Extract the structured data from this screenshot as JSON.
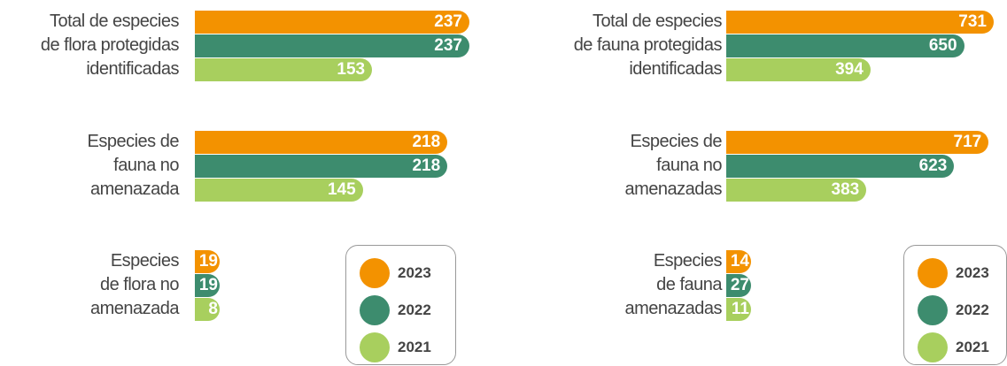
{
  "chart_data": [
    {
      "type": "bar",
      "categories": [
        "Total de especies\nde flora  protegidas\nidentificadas",
        "Especies de\nfauna no\namenazada",
        "Especies\nde flora no\namenazada"
      ],
      "series": [
        {
          "name": "2023",
          "color": "#f39200",
          "values": [
            237,
            218,
            19
          ]
        },
        {
          "name": "2022",
          "color": "#3d8c6e",
          "values": [
            237,
            218,
            19
          ]
        },
        {
          "name": "2021",
          "color": "#a8cf5e",
          "values": [
            153,
            145,
            8
          ]
        }
      ]
    },
    {
      "type": "bar",
      "categories": [
        "Total de especies\nde fauna protegidas\nidentificadas",
        "Especies de\nfauna no\namenazadas",
        "Especies\nde fauna\namenazadas"
      ],
      "series": [
        {
          "name": "2023",
          "color": "#f39200",
          "values": [
            731,
            717,
            14
          ]
        },
        {
          "name": "2022",
          "color": "#3d8c6e",
          "values": [
            650,
            623,
            27
          ]
        },
        {
          "name": "2021",
          "color": "#a8cf5e",
          "values": [
            394,
            383,
            11
          ]
        }
      ]
    }
  ]
}
